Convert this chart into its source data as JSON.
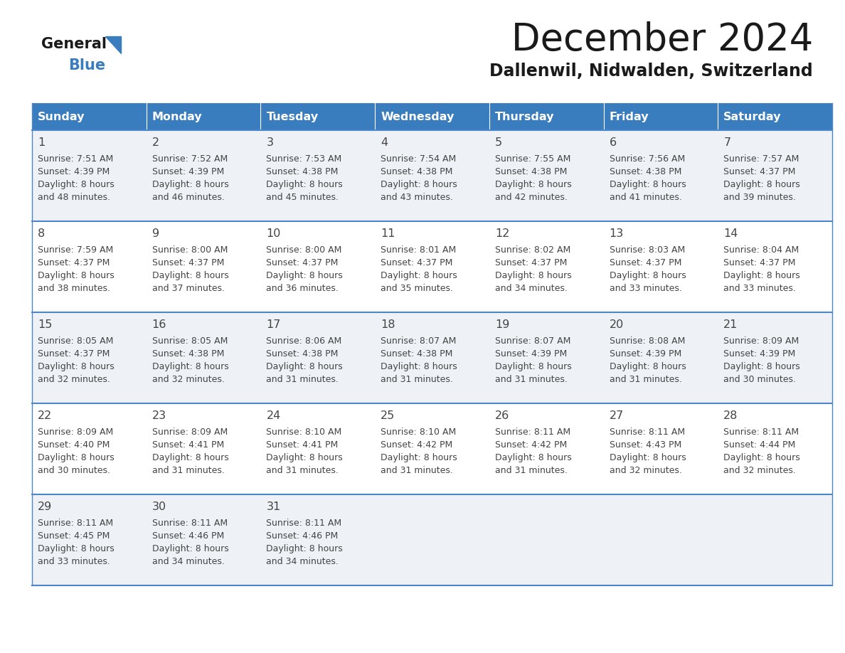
{
  "title": "December 2024",
  "subtitle": "Dallenwil, Nidwalden, Switzerland",
  "days_of_week": [
    "Sunday",
    "Monday",
    "Tuesday",
    "Wednesday",
    "Thursday",
    "Friday",
    "Saturday"
  ],
  "header_bg": "#3a7dbf",
  "header_text": "#ffffff",
  "row_bg_even": "#eef2f7",
  "row_bg_odd": "#ffffff",
  "border_color": "#4a86c8",
  "text_color": "#444444",
  "logo_general_color": "#1a1a1a",
  "logo_blue_color": "#3a7dbf",
  "logo_triangle_color": "#3a7dbf",
  "title_color": "#1a1a1a",
  "subtitle_color": "#1a1a1a",
  "calendar_data": [
    [
      {
        "day": 1,
        "sunrise": "7:51 AM",
        "sunset": "4:39 PM",
        "daylight": "8 hours and 48 minutes"
      },
      {
        "day": 2,
        "sunrise": "7:52 AM",
        "sunset": "4:39 PM",
        "daylight": "8 hours and 46 minutes"
      },
      {
        "day": 3,
        "sunrise": "7:53 AM",
        "sunset": "4:38 PM",
        "daylight": "8 hours and 45 minutes"
      },
      {
        "day": 4,
        "sunrise": "7:54 AM",
        "sunset": "4:38 PM",
        "daylight": "8 hours and 43 minutes"
      },
      {
        "day": 5,
        "sunrise": "7:55 AM",
        "sunset": "4:38 PM",
        "daylight": "8 hours and 42 minutes"
      },
      {
        "day": 6,
        "sunrise": "7:56 AM",
        "sunset": "4:38 PM",
        "daylight": "8 hours and 41 minutes"
      },
      {
        "day": 7,
        "sunrise": "7:57 AM",
        "sunset": "4:37 PM",
        "daylight": "8 hours and 39 minutes"
      }
    ],
    [
      {
        "day": 8,
        "sunrise": "7:59 AM",
        "sunset": "4:37 PM",
        "daylight": "8 hours and 38 minutes"
      },
      {
        "day": 9,
        "sunrise": "8:00 AM",
        "sunset": "4:37 PM",
        "daylight": "8 hours and 37 minutes"
      },
      {
        "day": 10,
        "sunrise": "8:00 AM",
        "sunset": "4:37 PM",
        "daylight": "8 hours and 36 minutes"
      },
      {
        "day": 11,
        "sunrise": "8:01 AM",
        "sunset": "4:37 PM",
        "daylight": "8 hours and 35 minutes"
      },
      {
        "day": 12,
        "sunrise": "8:02 AM",
        "sunset": "4:37 PM",
        "daylight": "8 hours and 34 minutes"
      },
      {
        "day": 13,
        "sunrise": "8:03 AM",
        "sunset": "4:37 PM",
        "daylight": "8 hours and 33 minutes"
      },
      {
        "day": 14,
        "sunrise": "8:04 AM",
        "sunset": "4:37 PM",
        "daylight": "8 hours and 33 minutes"
      }
    ],
    [
      {
        "day": 15,
        "sunrise": "8:05 AM",
        "sunset": "4:37 PM",
        "daylight": "8 hours and 32 minutes"
      },
      {
        "day": 16,
        "sunrise": "8:05 AM",
        "sunset": "4:38 PM",
        "daylight": "8 hours and 32 minutes"
      },
      {
        "day": 17,
        "sunrise": "8:06 AM",
        "sunset": "4:38 PM",
        "daylight": "8 hours and 31 minutes"
      },
      {
        "day": 18,
        "sunrise": "8:07 AM",
        "sunset": "4:38 PM",
        "daylight": "8 hours and 31 minutes"
      },
      {
        "day": 19,
        "sunrise": "8:07 AM",
        "sunset": "4:39 PM",
        "daylight": "8 hours and 31 minutes"
      },
      {
        "day": 20,
        "sunrise": "8:08 AM",
        "sunset": "4:39 PM",
        "daylight": "8 hours and 31 minutes"
      },
      {
        "day": 21,
        "sunrise": "8:09 AM",
        "sunset": "4:39 PM",
        "daylight": "8 hours and 30 minutes"
      }
    ],
    [
      {
        "day": 22,
        "sunrise": "8:09 AM",
        "sunset": "4:40 PM",
        "daylight": "8 hours and 30 minutes"
      },
      {
        "day": 23,
        "sunrise": "8:09 AM",
        "sunset": "4:41 PM",
        "daylight": "8 hours and 31 minutes"
      },
      {
        "day": 24,
        "sunrise": "8:10 AM",
        "sunset": "4:41 PM",
        "daylight": "8 hours and 31 minutes"
      },
      {
        "day": 25,
        "sunrise": "8:10 AM",
        "sunset": "4:42 PM",
        "daylight": "8 hours and 31 minutes"
      },
      {
        "day": 26,
        "sunrise": "8:11 AM",
        "sunset": "4:42 PM",
        "daylight": "8 hours and 31 minutes"
      },
      {
        "day": 27,
        "sunrise": "8:11 AM",
        "sunset": "4:43 PM",
        "daylight": "8 hours and 32 minutes"
      },
      {
        "day": 28,
        "sunrise": "8:11 AM",
        "sunset": "4:44 PM",
        "daylight": "8 hours and 32 minutes"
      }
    ],
    [
      {
        "day": 29,
        "sunrise": "8:11 AM",
        "sunset": "4:45 PM",
        "daylight": "8 hours and 33 minutes"
      },
      {
        "day": 30,
        "sunrise": "8:11 AM",
        "sunset": "4:46 PM",
        "daylight": "8 hours and 34 minutes"
      },
      {
        "day": 31,
        "sunrise": "8:11 AM",
        "sunset": "4:46 PM",
        "daylight": "8 hours and 34 minutes"
      },
      null,
      null,
      null,
      null
    ]
  ]
}
